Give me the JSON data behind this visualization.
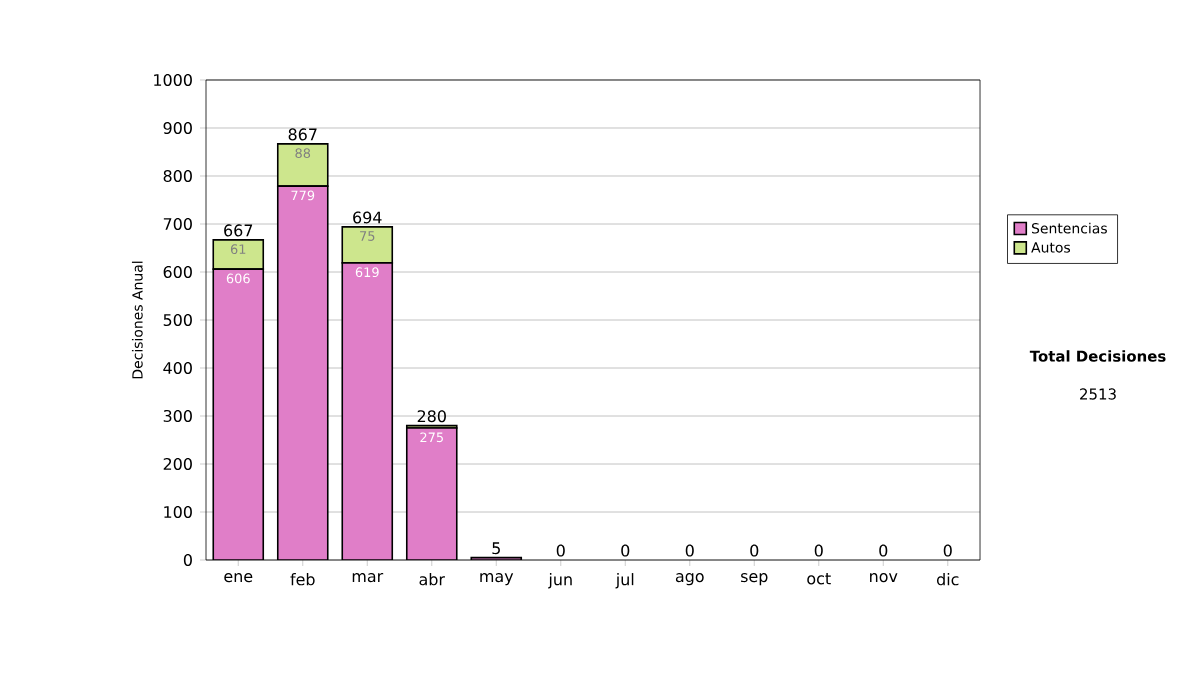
{
  "chart_data": {
    "type": "bar",
    "stacked": true,
    "ylabel": "Decisiones Anual",
    "categories": [
      "ene",
      "feb",
      "mar",
      "abr",
      "may",
      "jun",
      "jul",
      "ago",
      "sep",
      "oct",
      "nov",
      "dic"
    ],
    "series": [
      {
        "name": "Sentencias",
        "color": "#e07ec8",
        "values": [
          606,
          779,
          619,
          275,
          5,
          0,
          0,
          0,
          0,
          0,
          0,
          0
        ],
        "value_labels": [
          "606",
          "779",
          "619",
          "275",
          null,
          null,
          null,
          null,
          null,
          null,
          null,
          null
        ]
      },
      {
        "name": "Autos",
        "color": "#cde68d",
        "values": [
          61,
          88,
          75,
          5,
          0,
          0,
          0,
          0,
          0,
          0,
          0,
          0
        ],
        "value_labels": [
          "61",
          "88",
          "75",
          null,
          null,
          null,
          null,
          null,
          null,
          null,
          null,
          null
        ]
      }
    ],
    "totals": [
      "667",
      "867",
      "694",
      "280",
      "5",
      "0",
      "0",
      "0",
      "0",
      "0",
      "0",
      "0"
    ],
    "ylim": [
      0,
      1000
    ],
    "yticks": [
      0,
      100,
      200,
      300,
      400,
      500,
      600,
      700,
      800,
      900,
      1000
    ],
    "grid": "y",
    "legend": "right",
    "annotations": [
      "Total Decisiones",
      "2513"
    ]
  }
}
